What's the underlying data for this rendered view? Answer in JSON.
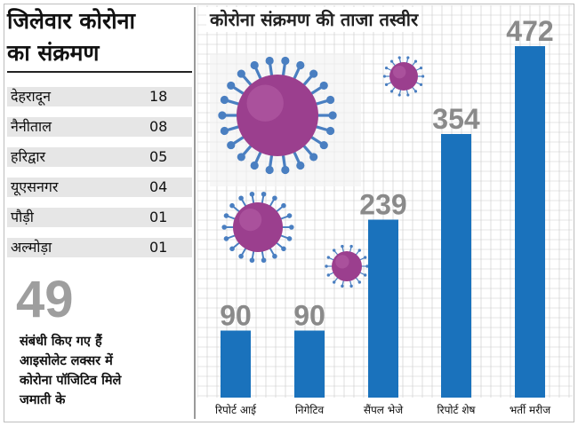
{
  "left_panel": {
    "title_line1": "जिलेवार कोरोना",
    "title_line2": "का संक्रमण",
    "districts": [
      {
        "name": "देहरादून",
        "count": "18"
      },
      {
        "name": "नैनीताल",
        "count": "08"
      },
      {
        "name": "हरिद्वार",
        "count": "05"
      },
      {
        "name": "यूएसनगर",
        "count": "04"
      },
      {
        "name": "पौड़ी",
        "count": "01"
      },
      {
        "name": "अल्मोड़ा",
        "count": "01"
      }
    ],
    "big_number": "49",
    "description_lines": [
      "संबंधी किए गए हैं",
      "आइसोलेट लक्सर में",
      "कोरोना पॉजिटिव मिले",
      "जमाती के"
    ]
  },
  "colors": {
    "bar": "#1a72bc",
    "value_label": "#8a8a8a",
    "grid": "#c9c9c9",
    "row_bg": "#e6e6e6",
    "virus_body": "#9b3f8e",
    "virus_spike": "#4a7fc1"
  },
  "chart_data": {
    "type": "bar",
    "title": "कोरोना संक्रमण की ताजा तस्वीर",
    "categories": [
      "रिपोर्ट आई",
      "निगेटिव",
      "सैंपल भेजे",
      "रिपोर्ट शेष",
      "भर्ती मरीज"
    ],
    "values": [
      90,
      90,
      239,
      354,
      472
    ],
    "data_labels": [
      "90",
      "90",
      "239",
      "354",
      "472"
    ],
    "ylim": [
      0,
      472
    ],
    "grid": true,
    "xlabel": "",
    "ylabel": ""
  }
}
